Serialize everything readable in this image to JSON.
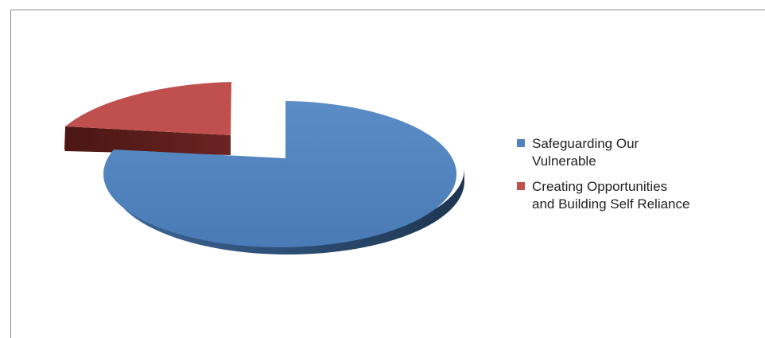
{
  "chart_data": {
    "type": "pie",
    "style": "3d-exploded",
    "title": "",
    "slices": [
      {
        "label": "Safeguarding Our\nVulnerable",
        "value": 78,
        "color": "#4F81BD",
        "side_color": "#2E4D73"
      },
      {
        "label": "Creating Opportunities\nand Building Self Reliance",
        "value": 22,
        "color": "#C0504D",
        "side_color": "#5E1F1D"
      }
    ],
    "legend_position": "right"
  }
}
